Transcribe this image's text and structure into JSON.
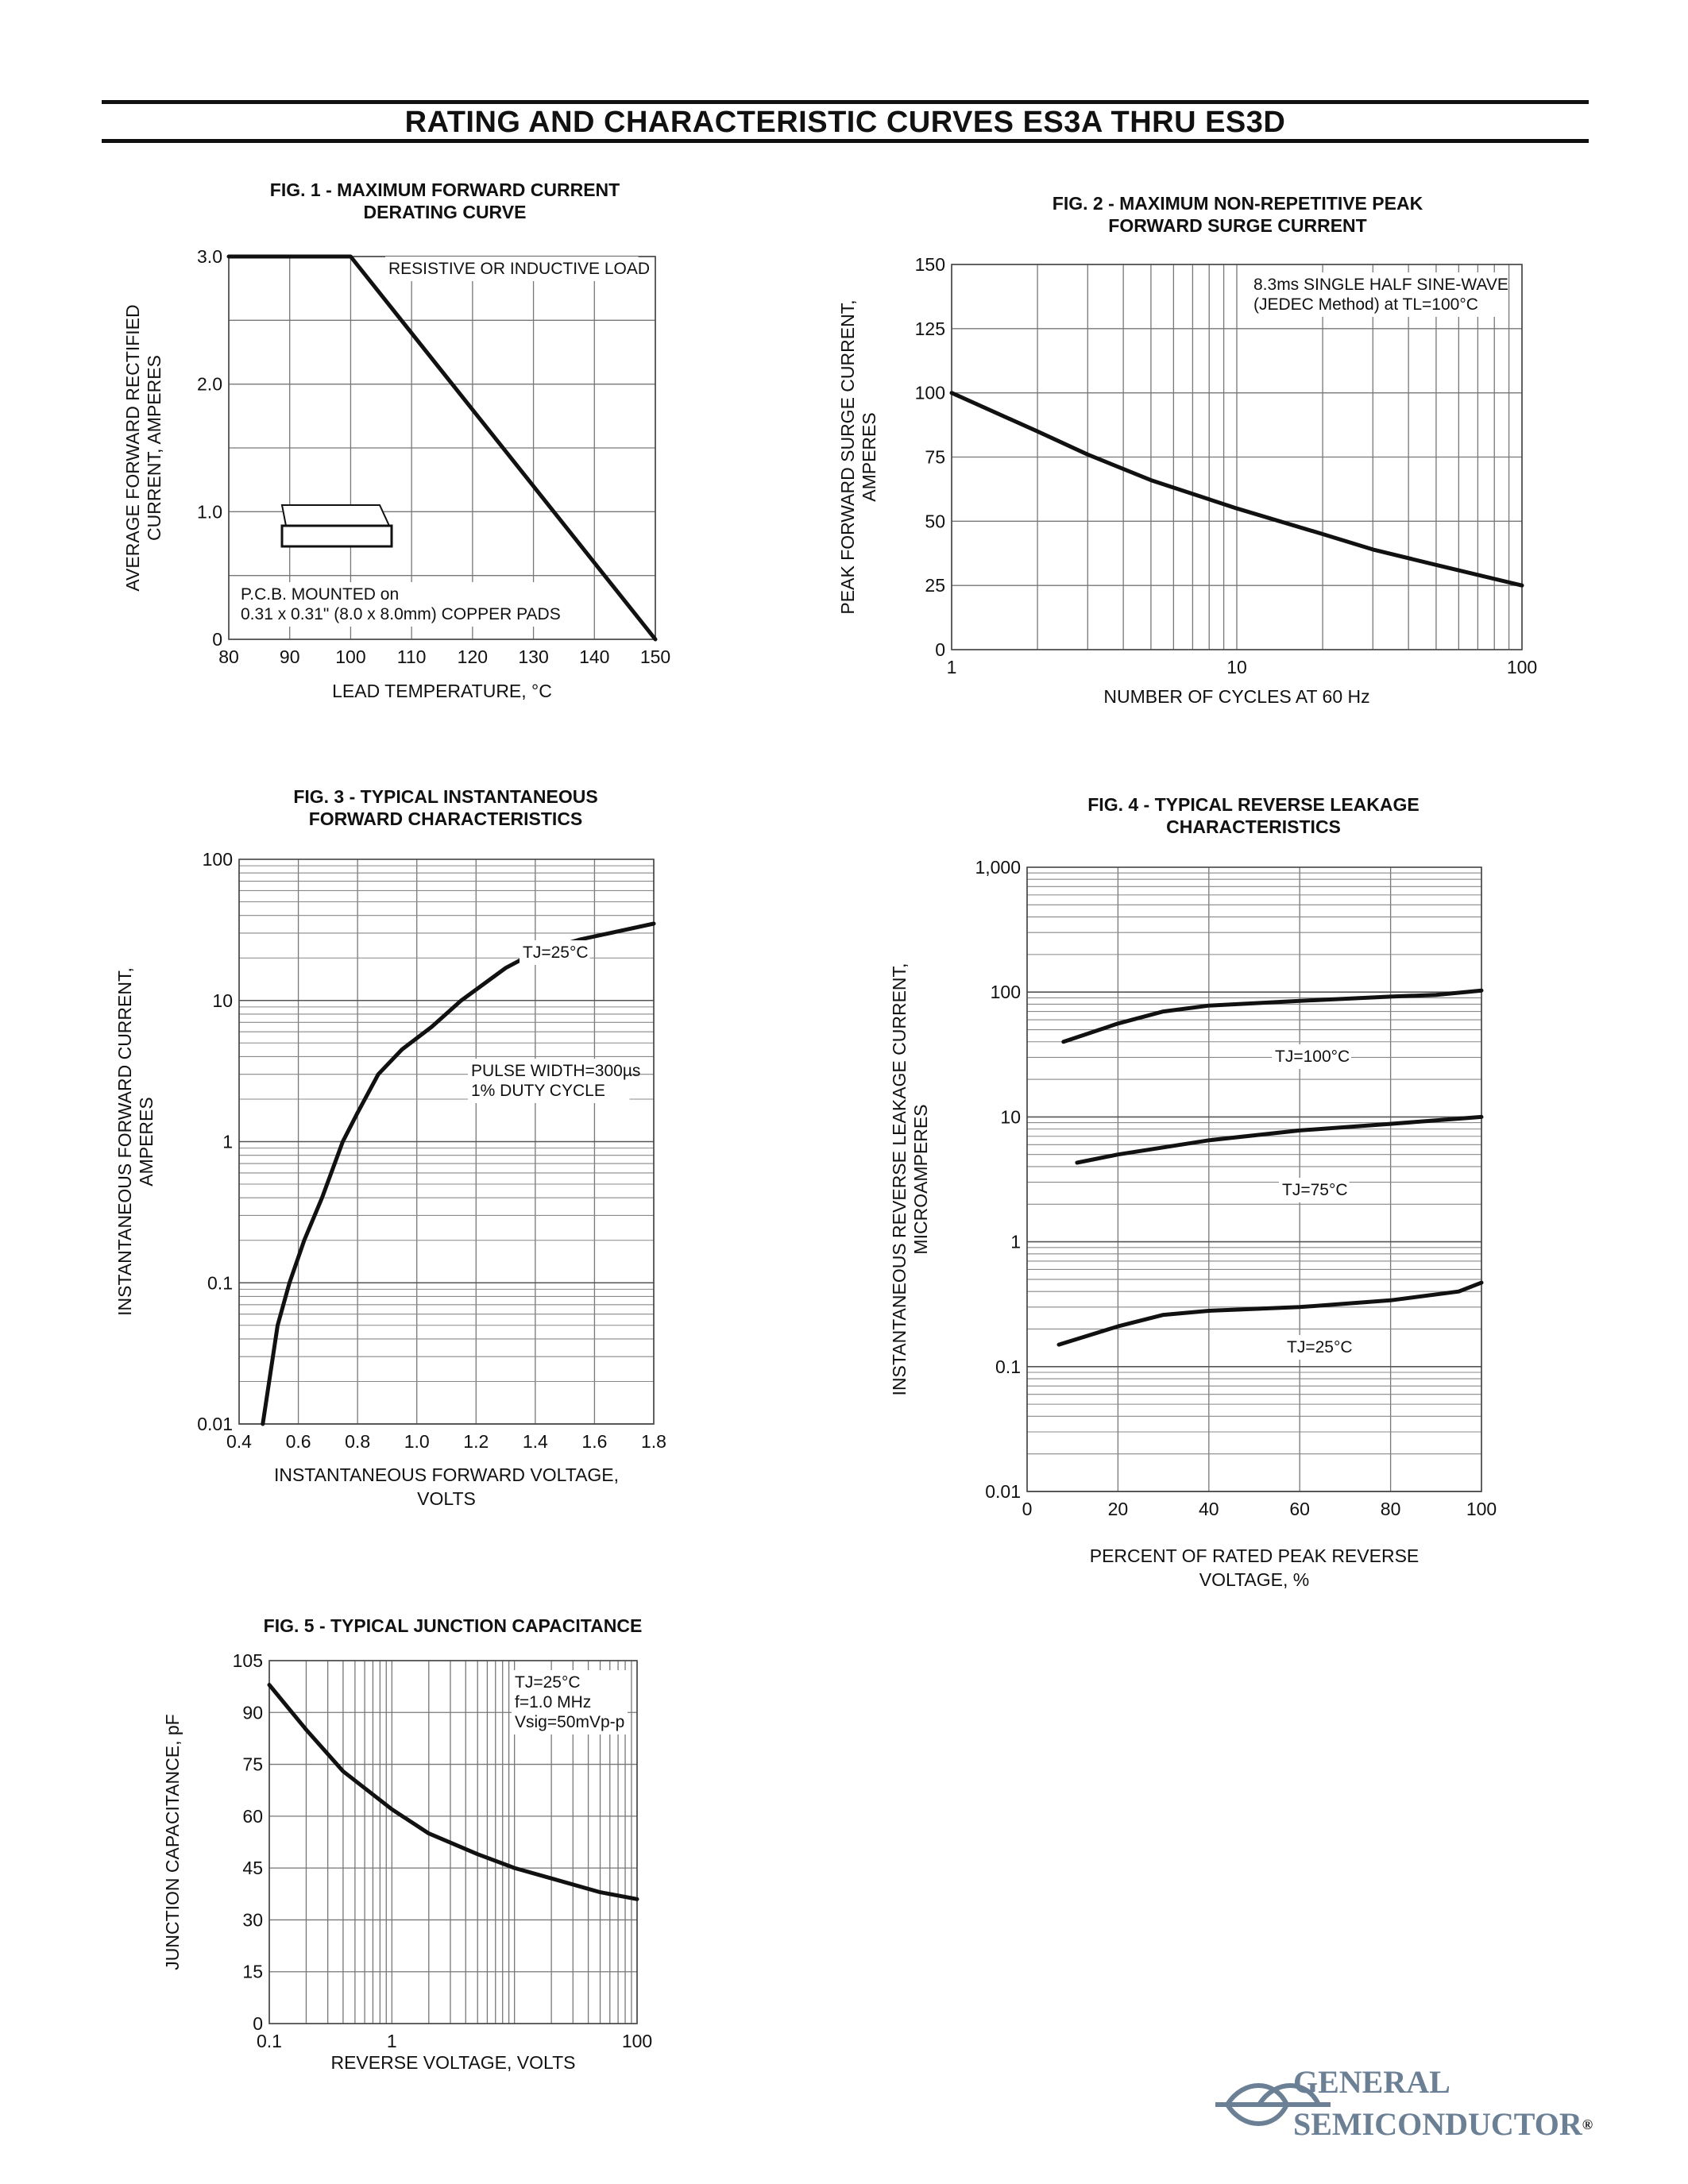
{
  "page": {
    "title": "RATING AND CHARACTERISTIC CURVES ES3A THRU ES3D",
    "logo": {
      "line1": "GENERAL",
      "line2": "SEMICONDUCTOR",
      "reg": "®",
      "color": "#6b7f95"
    }
  },
  "chart_data": [
    {
      "id": "fig1",
      "type": "line",
      "title": [
        "FIG. 1 - MAXIMUM FORWARD CURRENT",
        "DERATING CURVE"
      ],
      "xlabel": [
        "LEAD TEMPERATURE, °C"
      ],
      "ylabel": [
        "AVERAGE FORWARD RECTIFIED",
        "CURRENT, AMPERES"
      ],
      "xscale": "linear",
      "yscale": "linear",
      "xlim": [
        80,
        150
      ],
      "ylim": [
        0,
        3
      ],
      "xticks": [
        80,
        90,
        100,
        110,
        120,
        130,
        140,
        150
      ],
      "xtick_labels": [
        "80",
        "90",
        "100",
        "110",
        "120",
        "130",
        "140",
        "150"
      ],
      "yticks": [
        0,
        1,
        2,
        3
      ],
      "ytick_labels": [
        "0",
        "1.0",
        "2.0",
        "3.0"
      ],
      "grid_x": [
        80,
        90,
        100,
        110,
        120,
        130,
        140,
        150
      ],
      "grid_y": [
        0,
        0.5,
        1,
        1.5,
        2,
        2.5,
        3
      ],
      "series": [
        {
          "x": [
            80,
            100,
            150
          ],
          "y": [
            3.0,
            3.0,
            0
          ]
        }
      ],
      "annotations": [
        {
          "lines": [
            "RESISTIVE OR INDUCTIVE LOAD"
          ]
        },
        {
          "lines": [
            "P.C.B. MOUNTED on",
            "0.31 x 0.31\" (8.0 x 8.0mm) COPPER PADS"
          ]
        }
      ]
    },
    {
      "id": "fig2",
      "type": "line",
      "title": [
        "FIG. 2 - MAXIMUM NON-REPETITIVE PEAK",
        "FORWARD SURGE CURRENT"
      ],
      "xlabel": [
        "NUMBER OF CYCLES AT 60 Hz"
      ],
      "ylabel": [
        "PEAK FORWARD SURGE  CURRENT,",
        "AMPERES"
      ],
      "xscale": "log",
      "yscale": "linear",
      "xlim": [
        1,
        100
      ],
      "ylim": [
        0,
        150
      ],
      "xticks": [
        1,
        10,
        100
      ],
      "xtick_labels": [
        "1",
        "10",
        "100"
      ],
      "yticks": [
        0,
        25,
        50,
        75,
        100,
        125,
        150
      ],
      "ytick_labels": [
        "0",
        "25",
        "50",
        "75",
        "100",
        "125",
        "150"
      ],
      "grid_x": [
        1,
        2,
        3,
        4,
        5,
        6,
        7,
        8,
        9,
        10,
        20,
        30,
        40,
        50,
        60,
        70,
        80,
        90,
        100
      ],
      "grid_y": [
        0,
        25,
        50,
        75,
        100,
        125,
        150
      ],
      "series": [
        {
          "x": [
            1,
            2,
            3,
            5,
            10,
            20,
            30,
            50,
            100
          ],
          "y": [
            100,
            85,
            76,
            66,
            55,
            45,
            39,
            33,
            25
          ]
        }
      ],
      "annotations": [
        {
          "lines": [
            "8.3ms SINGLE HALF SINE-WAVE",
            "(JEDEC Method) at TL=100°C"
          ]
        }
      ]
    },
    {
      "id": "fig3",
      "type": "line",
      "title": [
        "FIG. 3 - TYPICAL INSTANTANEOUS",
        "FORWARD CHARACTERISTICS"
      ],
      "xlabel": [
        "INSTANTANEOUS FORWARD VOLTAGE,",
        "VOLTS"
      ],
      "ylabel": [
        "INSTANTANEOUS FORWARD CURRENT,",
        "AMPERES"
      ],
      "xscale": "linear",
      "yscale": "log",
      "xlim": [
        0.4,
        1.8
      ],
      "ylim": [
        0.01,
        100
      ],
      "xticks": [
        0.4,
        0.6,
        0.8,
        1.0,
        1.2,
        1.4,
        1.6,
        1.8
      ],
      "xtick_labels": [
        "0.4",
        "0.6",
        "0.8",
        "1.0",
        "1.2",
        "1.4",
        "1.6",
        "1.8"
      ],
      "yticks": [
        0.01,
        0.1,
        1,
        10,
        100
      ],
      "ytick_labels": [
        "0.01",
        "0.1",
        "1",
        "10",
        "100"
      ],
      "grid_x": [
        0.4,
        0.6,
        0.8,
        1.0,
        1.2,
        1.4,
        1.6,
        1.8
      ],
      "grid_y_log_minor": true,
      "series": [
        {
          "x": [
            0.48,
            0.53,
            0.57,
            0.62,
            0.68,
            0.75,
            0.8,
            0.87,
            0.95,
            1.05,
            1.15,
            1.3,
            1.4,
            1.55,
            1.8
          ],
          "y": [
            0.01,
            0.05,
            0.1,
            0.2,
            0.4,
            1.0,
            1.6,
            3.0,
            4.5,
            6.5,
            10,
            17,
            22,
            27,
            35
          ]
        }
      ],
      "annotations": [
        {
          "lines": [
            "TJ=25°C"
          ]
        },
        {
          "lines": [
            "PULSE WIDTH=300µs",
            "1% DUTY CYCLE"
          ]
        }
      ]
    },
    {
      "id": "fig4",
      "type": "line",
      "title": [
        "FIG. 4 - TYPICAL REVERSE LEAKAGE",
        "CHARACTERISTICS"
      ],
      "xlabel": [
        "PERCENT OF RATED PEAK REVERSE",
        "VOLTAGE, %"
      ],
      "ylabel": [
        "INSTANTANEOUS REVERSE LEAKAGE CURRENT,",
        "MICROAMPERES"
      ],
      "xscale": "linear",
      "yscale": "log",
      "xlim": [
        0,
        100
      ],
      "ylim": [
        0.01,
        1000
      ],
      "xticks": [
        0,
        20,
        40,
        60,
        80,
        100
      ],
      "xtick_labels": [
        "0",
        "20",
        "40",
        "60",
        "80",
        "100"
      ],
      "yticks": [
        0.01,
        0.1,
        1,
        10,
        100,
        1000
      ],
      "ytick_labels": [
        "0.01",
        "0.1",
        "1",
        "10",
        "100",
        "1,000"
      ],
      "grid_x": [
        0,
        20,
        40,
        60,
        80,
        100
      ],
      "grid_y_log_minor": true,
      "series": [
        {
          "name": "TJ=100°C",
          "x": [
            8,
            20,
            30,
            40,
            60,
            80,
            90,
            100
          ],
          "y": [
            40,
            56,
            70,
            78,
            85,
            92,
            95,
            103
          ]
        },
        {
          "name": "TJ=75°C",
          "x": [
            11,
            20,
            40,
            60,
            80,
            100
          ],
          "y": [
            4.3,
            5.0,
            6.5,
            7.8,
            8.8,
            10
          ]
        },
        {
          "name": "TJ=25°C",
          "x": [
            7,
            20,
            30,
            40,
            60,
            80,
            95,
            100
          ],
          "y": [
            0.15,
            0.21,
            0.26,
            0.28,
            0.3,
            0.34,
            0.4,
            0.47
          ]
        }
      ],
      "annotations": [
        {
          "lines": [
            "TJ=100°C"
          ]
        },
        {
          "lines": [
            "TJ=75°C"
          ]
        },
        {
          "lines": [
            "TJ=25°C"
          ]
        }
      ]
    },
    {
      "id": "fig5",
      "type": "line",
      "title": [
        "FIG. 5 - TYPICAL JUNCTION CAPACITANCE"
      ],
      "xlabel": [
        "REVERSE VOLTAGE, VOLTS"
      ],
      "ylabel": [
        "JUNCTION CAPACITANCE, pF"
      ],
      "xscale": "log",
      "yscale": "linear",
      "xlim": [
        0.1,
        100
      ],
      "ylim": [
        0,
        105
      ],
      "xticks": [
        0.1,
        1,
        100
      ],
      "xtick_labels": [
        "0.1",
        "1",
        "100"
      ],
      "yticks": [
        0,
        15,
        30,
        45,
        60,
        75,
        90,
        105
      ],
      "ytick_labels": [
        "0",
        "15",
        "30",
        "45",
        "60",
        "75",
        "90",
        "105"
      ],
      "grid_x": [
        0.1,
        0.2,
        0.3,
        0.4,
        0.5,
        0.6,
        0.7,
        0.8,
        0.9,
        1,
        2,
        3,
        4,
        5,
        6,
        7,
        8,
        9,
        10,
        20,
        30,
        40,
        50,
        60,
        70,
        80,
        90,
        100
      ],
      "grid_y": [
        0,
        15,
        30,
        45,
        60,
        75,
        90,
        105
      ],
      "series": [
        {
          "x": [
            0.1,
            0.2,
            0.4,
            1,
            2,
            5,
            10,
            20,
            50,
            100
          ],
          "y": [
            98,
            85,
            73,
            62,
            55,
            49,
            45,
            42,
            38,
            36
          ]
        }
      ],
      "annotations": [
        {
          "lines": [
            "TJ=25°C",
            "f=1.0 MHz",
            "Vsig=50mVp-p"
          ]
        }
      ]
    }
  ]
}
